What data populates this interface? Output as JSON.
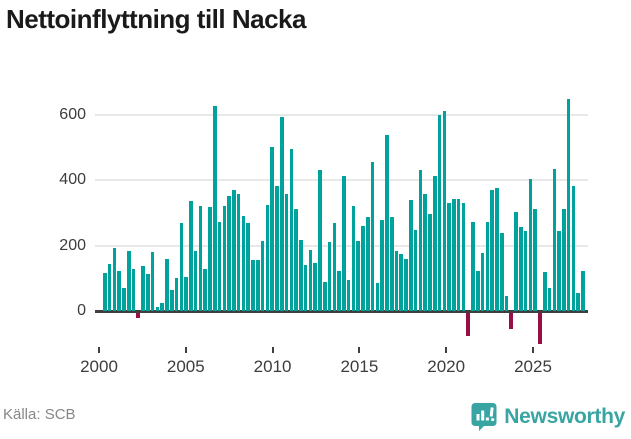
{
  "header": {
    "title": "Nettoinflyttning till Nacka"
  },
  "footer": {
    "source_label": "Källa: SCB",
    "brand_name": "Newsworthy"
  },
  "colors": {
    "positive_bar": "#00a39c",
    "negative_bar": "#9a0e47",
    "axis": "#3f3f3f",
    "grid": "#e8e8e8",
    "brand_teal": "#38a5a2",
    "title_text": "#1a1a1a",
    "tick_text": "#3d3d3d",
    "source_text": "#878787"
  },
  "chart_data": {
    "type": "bar",
    "title": "Nettoinflyttning till Nacka",
    "xlabel": "",
    "ylabel": "",
    "frequency": "quarterly",
    "x_start": "2000Q1",
    "x_end": "2025Q1",
    "x_tick_years": [
      2000,
      2005,
      2010,
      2015,
      2020,
      2025
    ],
    "y_ticks": [
      0,
      200,
      400,
      600
    ],
    "ylim": [
      -110,
      660
    ],
    "grid": true,
    "legend": "none",
    "values": [
      116,
      143,
      194,
      124,
      71,
      184,
      128,
      -15,
      139,
      114,
      182,
      11,
      26,
      158,
      64,
      100,
      270,
      105,
      338,
      183,
      321,
      130,
      318,
      627,
      272,
      323,
      352,
      372,
      357,
      290,
      270,
      157,
      157,
      213,
      326,
      502,
      384,
      593,
      359,
      497,
      311,
      216,
      142,
      188,
      147,
      431,
      90,
      210,
      268,
      121,
      415,
      95,
      323,
      215,
      260,
      287,
      456,
      87,
      280,
      539,
      288,
      183,
      175,
      159,
      339,
      247,
      431,
      357,
      296,
      415,
      600,
      613,
      331,
      344,
      342,
      331,
      -70,
      272,
      124,
      177,
      272,
      372,
      378,
      240,
      45,
      -50,
      303,
      257,
      244,
      404,
      313,
      -95,
      118,
      70,
      434,
      244,
      313,
      650,
      383,
      56,
      121
    ]
  }
}
